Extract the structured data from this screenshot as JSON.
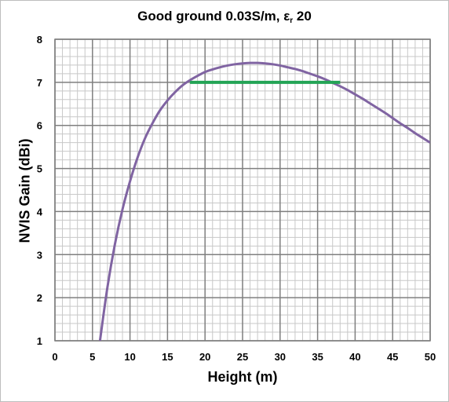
{
  "chart_data": {
    "type": "line",
    "title": "Good ground 0.03S/m, ε",
    "title_subscript": "r",
    "title_suffix": " 20",
    "xlabel": "Height (m)",
    "ylabel": "NVIS Gain (dBi)",
    "xlim": [
      0,
      50
    ],
    "ylim": [
      1,
      8
    ],
    "x_ticks": [
      0,
      5,
      10,
      15,
      20,
      25,
      30,
      35,
      40,
      45,
      50
    ],
    "y_ticks": [
      1,
      2,
      3,
      4,
      5,
      6,
      7,
      8
    ],
    "grid": true,
    "colors": {
      "curve": "#8064a2",
      "band": "#23a455",
      "grid_major": "#7f7f7f",
      "grid_minor": "#c8c8c8"
    },
    "series": [
      {
        "x": [
          6,
          7,
          8,
          9,
          10,
          11,
          12,
          13,
          14,
          15,
          16,
          17,
          18,
          19,
          20,
          21,
          22,
          23,
          24,
          25,
          26,
          27,
          28,
          29,
          30,
          31,
          32,
          33,
          34,
          35,
          36,
          37,
          38,
          39,
          40,
          41,
          42,
          43,
          44,
          45,
          46,
          47,
          48,
          49,
          50
        ],
        "values": [
          1.0,
          2.25,
          3.25,
          4.05,
          4.7,
          5.25,
          5.7,
          6.05,
          6.35,
          6.58,
          6.77,
          6.93,
          7.05,
          7.15,
          7.24,
          7.3,
          7.35,
          7.39,
          7.42,
          7.44,
          7.45,
          7.45,
          7.44,
          7.42,
          7.39,
          7.35,
          7.31,
          7.26,
          7.2,
          7.14,
          7.07,
          6.99,
          6.91,
          6.82,
          6.72,
          6.62,
          6.51,
          6.4,
          6.29,
          6.17,
          6.05,
          5.94,
          5.82,
          5.71,
          5.6
        ]
      },
      {
        "x": [
          18,
          38
        ],
        "values": [
          7.0,
          7.0
        ]
      }
    ]
  }
}
